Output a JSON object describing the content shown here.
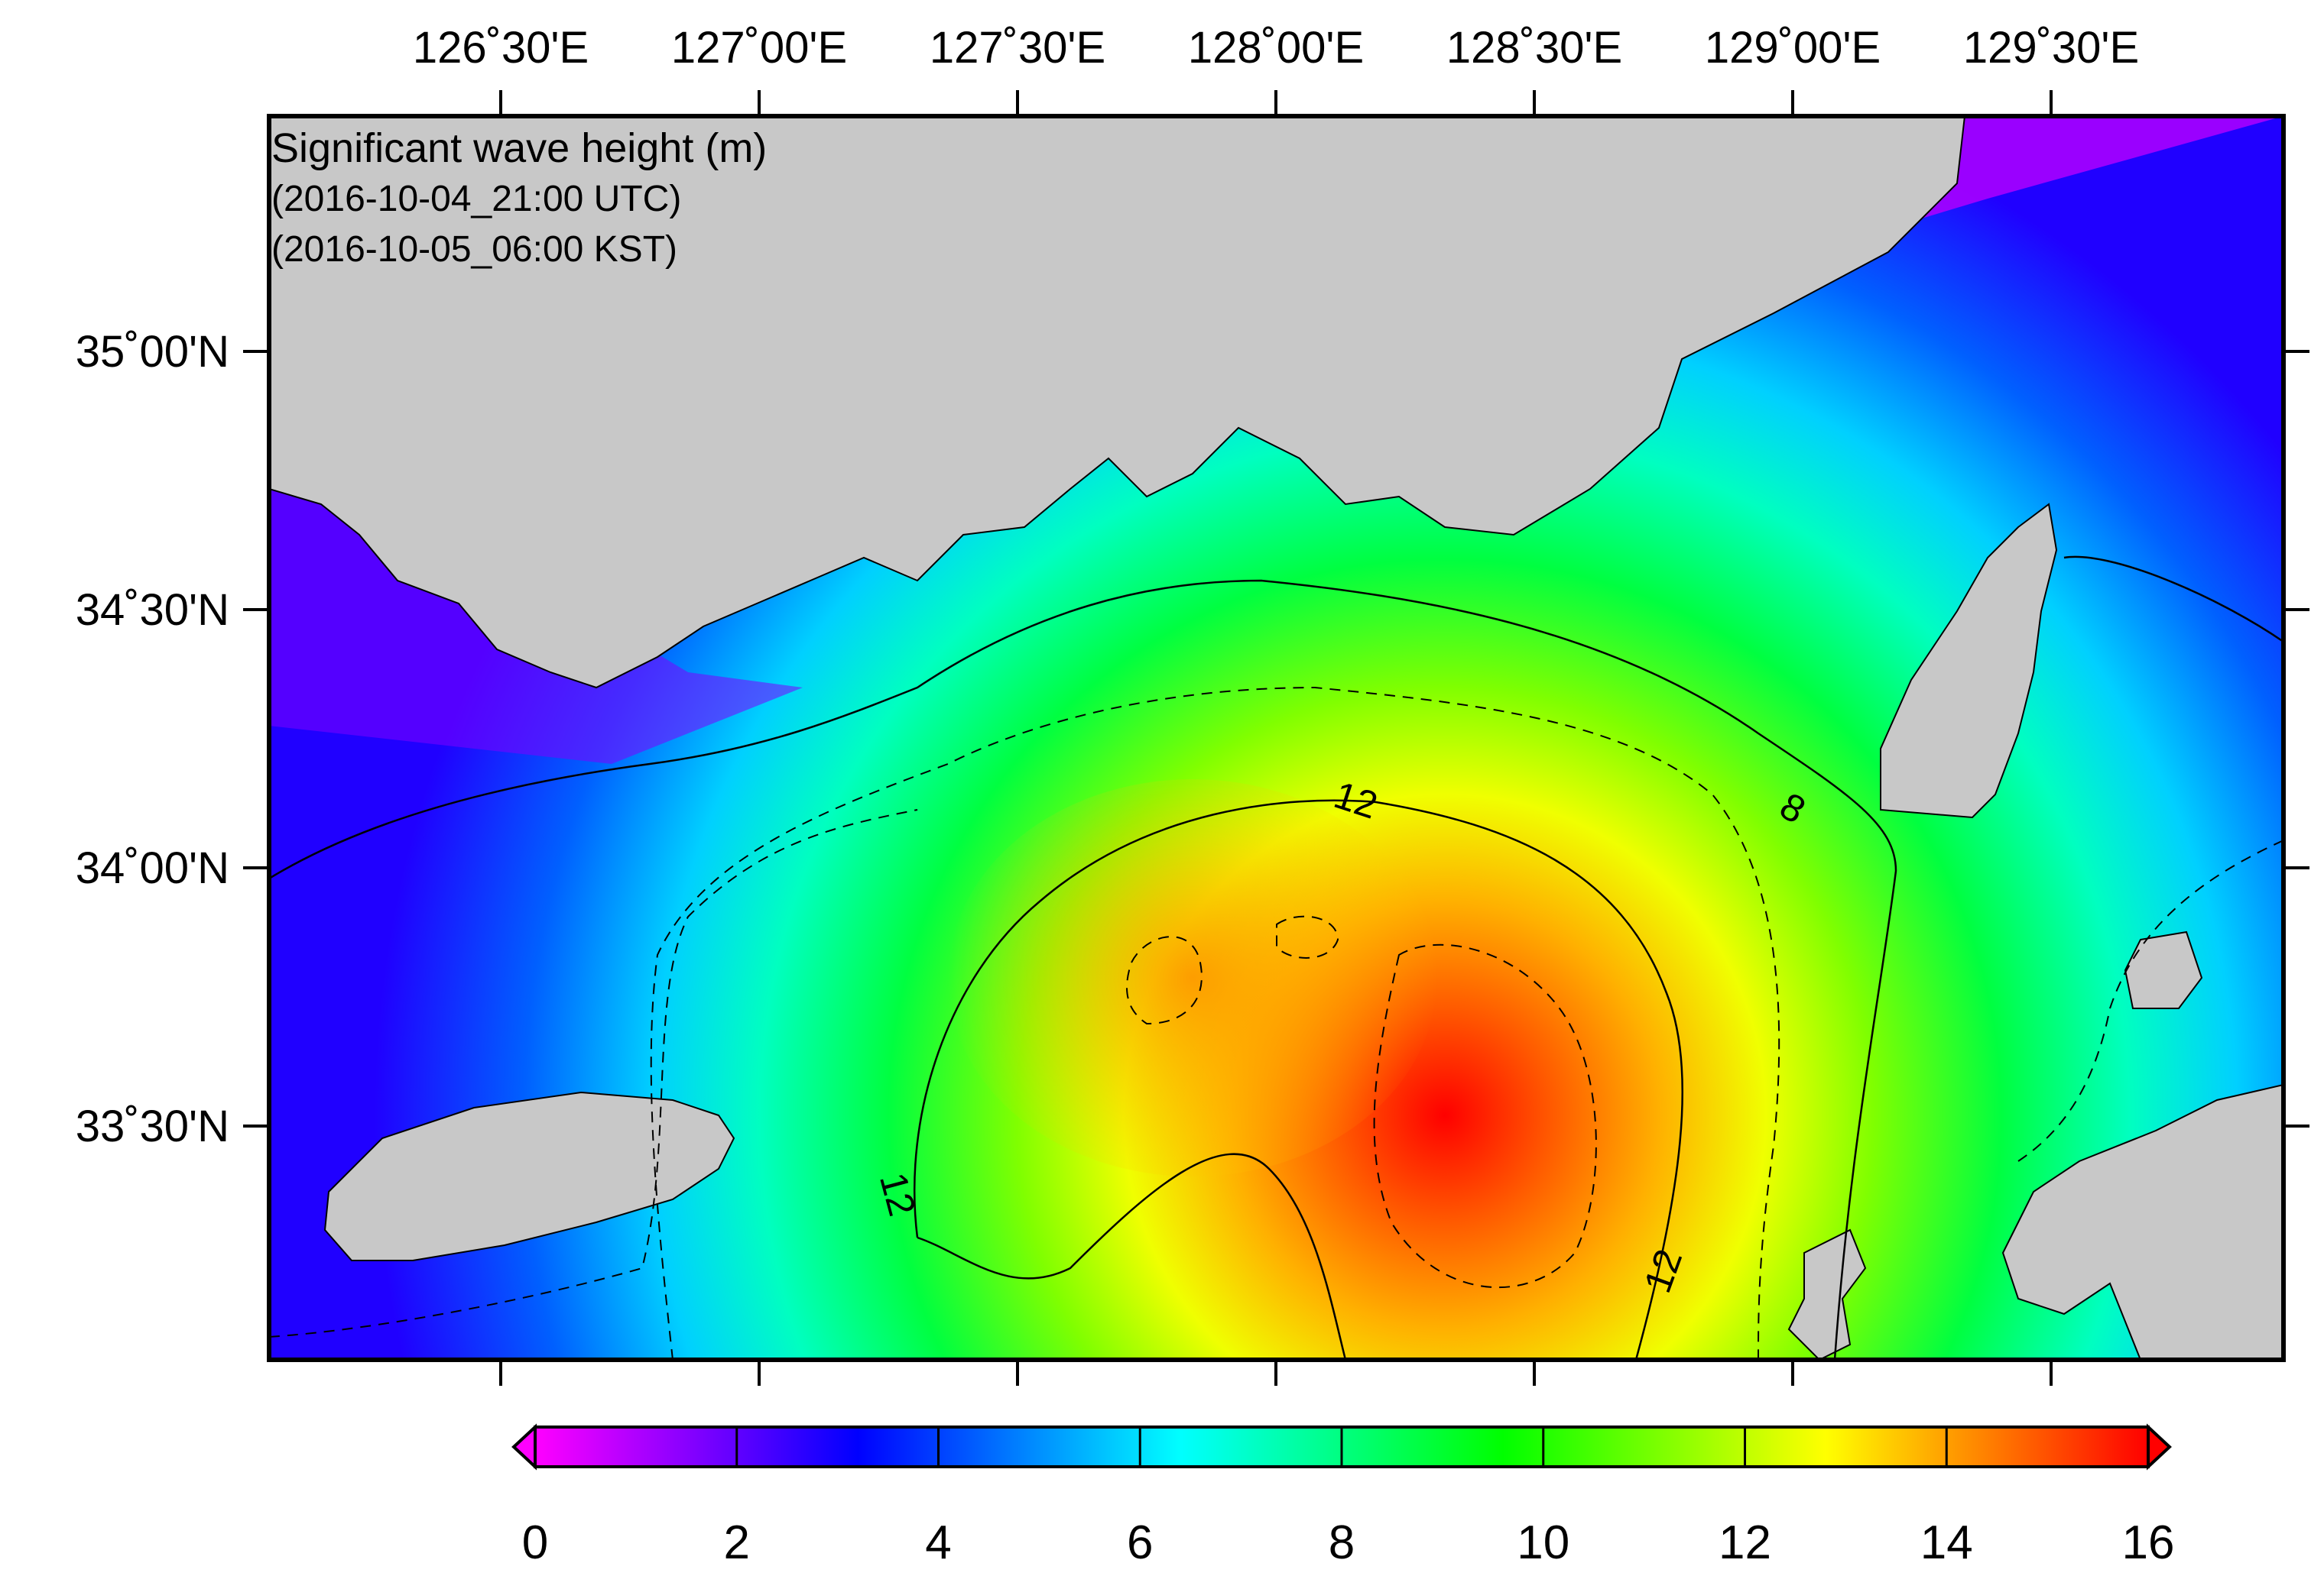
{
  "map": {
    "title": "Significant wave height (m)",
    "utc_time": "(2016-10-04_21:00 UTC)",
    "kst_time": "(2016-10-05_06:00 KST)",
    "lon_ticks": [
      "126˚30'E",
      "127˚00'E",
      "127˚30'E",
      "128˚00'E",
      "128˚30'E",
      "129˚00'E",
      "129˚30'E"
    ],
    "lat_ticks": [
      "35˚00'N",
      "34˚30'N",
      "34˚00'N",
      "33˚30'N"
    ],
    "contour_labels": [
      "12",
      "12",
      "12",
      "8"
    ],
    "land_color": "#c8c8c8",
    "colorbar": {
      "ticks": [
        "0",
        "2",
        "4",
        "6",
        "8",
        "10",
        "12",
        "14",
        "16"
      ],
      "min": 0,
      "max": 16,
      "colors": [
        "#ff00ff",
        "#8000ff",
        "#0000ff",
        "#0080ff",
        "#00ffff",
        "#00ff80",
        "#00ff00",
        "#80ff00",
        "#ffff00",
        "#ff8000",
        "#ff0000"
      ]
    }
  }
}
